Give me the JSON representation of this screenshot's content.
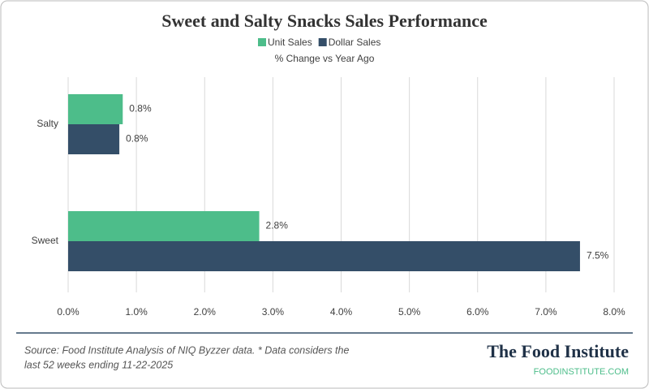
{
  "chart_data": {
    "type": "hbar",
    "title": "Sweet and Salty Snacks Sales Performance",
    "subtitle": "% Change vs Year Ago",
    "categories": [
      "Salty",
      "Sweet"
    ],
    "series": [
      {
        "name": "Unit Sales",
        "color": "#4dbd8a",
        "values": [
          0.8,
          2.8
        ],
        "value_labels": [
          "0.8%",
          "2.8%"
        ]
      },
      {
        "name": "Dollar Sales",
        "color": "#344e68",
        "values": [
          0.75,
          7.5
        ],
        "value_labels": [
          "0.8%",
          "7.5%"
        ]
      }
    ],
    "xlim": [
      0,
      8
    ],
    "xticks": [
      {
        "value": 0,
        "label": "0.0%"
      },
      {
        "value": 1,
        "label": "1.0%"
      },
      {
        "value": 2,
        "label": "2.0%"
      },
      {
        "value": 3,
        "label": "3.0%"
      },
      {
        "value": 4,
        "label": "4.0%"
      },
      {
        "value": 5,
        "label": "5.0%"
      },
      {
        "value": 6,
        "label": "6.0%"
      },
      {
        "value": 7,
        "label": "7.0%"
      },
      {
        "value": 8,
        "label": "8.0%"
      }
    ],
    "grid": true,
    "legend": "top"
  },
  "footer": {
    "source": [
      "Source: Food Institute Analysis of NIQ Byzzer data. * Data considers the",
      "last 52 weeks ending 11-22-2025"
    ],
    "brand": "The Food Institute",
    "url": "FOODINSTITUTE.COM"
  }
}
